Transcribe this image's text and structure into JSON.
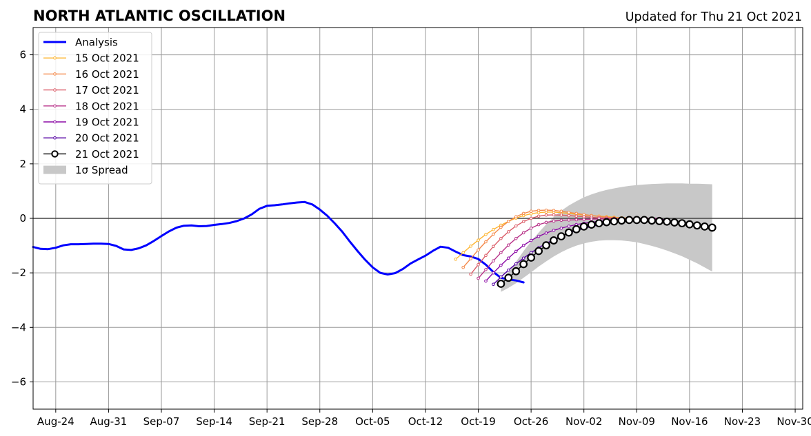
{
  "chart_data": {
    "type": "line",
    "title": "NORTH ATLANTIC OSCILLATION",
    "subtitle": "Updated for Thu 21 Oct 2021",
    "xlabel": "",
    "ylabel": "",
    "x_axis": {
      "type": "date",
      "range": [
        "2021-08-21",
        "2021-12-01"
      ],
      "ticks": [
        "2021-08-24",
        "2021-08-31",
        "2021-09-07",
        "2021-09-14",
        "2021-09-21",
        "2021-09-28",
        "2021-10-05",
        "2021-10-12",
        "2021-10-19",
        "2021-10-26",
        "2021-11-02",
        "2021-11-09",
        "2021-11-16",
        "2021-11-23",
        "2021-11-30"
      ],
      "tick_labels": [
        "Aug-24",
        "Aug-31",
        "Sep-07",
        "Sep-14",
        "Sep-21",
        "Sep-28",
        "Oct-05",
        "Oct-12",
        "Oct-19",
        "Oct-26",
        "Nov-02",
        "Nov-09",
        "Nov-16",
        "Nov-23",
        "Nov-30"
      ]
    },
    "y_axis": {
      "range": [
        -7,
        7
      ],
      "ticks": [
        -6,
        -4,
        -2,
        0,
        2,
        4,
        6
      ],
      "tick_labels": [
        "−6",
        "−4",
        "−2",
        "0",
        "2",
        "4",
        "6"
      ]
    },
    "grid": true,
    "legend_placement": "upper-left",
    "analysis": {
      "name": "Analysis",
      "color": "#0000ff",
      "start": "2021-08-21",
      "values": [
        -1.05,
        -1.12,
        -1.13,
        -1.08,
        -0.99,
        -0.95,
        -0.95,
        -0.94,
        -0.93,
        -0.93,
        -0.94,
        -1.01,
        -1.14,
        -1.16,
        -1.1,
        -0.99,
        -0.83,
        -0.65,
        -0.48,
        -0.34,
        -0.27,
        -0.26,
        -0.29,
        -0.28,
        -0.24,
        -0.21,
        -0.17,
        -0.1,
        0.0,
        0.15,
        0.35,
        0.46,
        0.48,
        0.51,
        0.55,
        0.58,
        0.6,
        0.51,
        0.32,
        0.09,
        -0.19,
        -0.5,
        -0.86,
        -1.2,
        -1.52,
        -1.8,
        -2.0,
        -2.06,
        -2.01,
        -1.86,
        -1.66,
        -1.51,
        -1.37,
        -1.19,
        -1.04,
        -1.08,
        -1.22,
        -1.35,
        -1.4,
        -1.49,
        -1.7,
        -1.97,
        -2.18,
        -2.24,
        -2.28,
        -2.35
      ]
    },
    "forecasts": [
      {
        "name": "15 Oct 2021",
        "color": "#fdb42f",
        "start": "2021-10-16",
        "values": [
          -1.5,
          -1.26,
          -1.02,
          -0.8,
          -0.59,
          -0.41,
          -0.25,
          -0.11,
          0.01,
          0.1,
          0.17,
          0.21,
          0.23,
          0.23,
          0.21,
          0.18,
          0.15,
          0.12,
          0.1,
          0.08,
          0.06,
          0.04,
          0.02,
          0.01,
          0.0
        ]
      },
      {
        "name": "16 Oct 2021",
        "color": "#f48849",
        "start": "2021-10-17",
        "values": [
          -1.8,
          -1.48,
          -1.16,
          -0.86,
          -0.58,
          -0.33,
          -0.11,
          0.06,
          0.18,
          0.26,
          0.29,
          0.3,
          0.29,
          0.26,
          0.22,
          0.18,
          0.14,
          0.1,
          0.07,
          0.04,
          0.02,
          0.01,
          0.0,
          -0.01,
          -0.02
        ]
      },
      {
        "name": "17 Oct 2021",
        "color": "#db5c68",
        "start": "2021-10-18",
        "values": [
          -2.05,
          -1.7,
          -1.36,
          -1.03,
          -0.74,
          -0.49,
          -0.28,
          -0.12,
          0.0,
          0.08,
          0.12,
          0.13,
          0.12,
          0.1,
          0.08,
          0.06,
          0.04,
          0.02,
          0.01,
          0.0,
          -0.01,
          -0.02,
          -0.03,
          -0.04,
          -0.05
        ]
      },
      {
        "name": "18 Oct 2021",
        "color": "#b83289",
        "start": "2021-10-19",
        "values": [
          -2.2,
          -1.88,
          -1.56,
          -1.26,
          -0.98,
          -0.74,
          -0.53,
          -0.36,
          -0.23,
          -0.15,
          -0.1,
          -0.07,
          -0.06,
          -0.05,
          -0.04,
          -0.03,
          -0.02,
          -0.02,
          -0.01,
          -0.01,
          0.0,
          0.0,
          0.0,
          0.0,
          0.0
        ]
      },
      {
        "name": "19 Oct 2021",
        "color": "#8b0aa5",
        "start": "2021-10-20",
        "values": [
          -2.3,
          -2.0,
          -1.72,
          -1.46,
          -1.21,
          -0.99,
          -0.81,
          -0.66,
          -0.54,
          -0.44,
          -0.36,
          -0.29,
          -0.23,
          -0.18,
          -0.14,
          -0.11,
          -0.08,
          -0.06,
          -0.05,
          -0.04,
          -0.03,
          -0.03,
          -0.03,
          -0.04,
          -0.05
        ]
      },
      {
        "name": "20 Oct 2021",
        "color": "#5402a3",
        "start": "2021-10-21",
        "values": [
          -2.42,
          -2.15,
          -1.9,
          -1.67,
          -1.46,
          -1.26,
          -1.08,
          -0.92,
          -0.78,
          -0.65,
          -0.54,
          -0.45,
          -0.37,
          -0.3,
          -0.24,
          -0.19,
          -0.15,
          -0.12,
          -0.1,
          -0.09,
          -0.08,
          -0.08,
          -0.09,
          -0.1,
          -0.11
        ]
      }
    ],
    "current_forecast": {
      "name": "21 Oct 2021",
      "color": "#000000",
      "start": "2021-10-22",
      "values": [
        -2.4,
        -2.18,
        -1.94,
        -1.68,
        -1.44,
        -1.2,
        -0.99,
        -0.81,
        -0.66,
        -0.52,
        -0.4,
        -0.3,
        -0.23,
        -0.18,
        -0.14,
        -0.11,
        -0.08,
        -0.06,
        -0.06,
        -0.06,
        -0.08,
        -0.1,
        -0.12,
        -0.15,
        -0.18,
        -0.22,
        -0.26,
        -0.3,
        -0.34
      ]
    },
    "spread": {
      "name": "1σ Spread",
      "color": "#c8c8c8",
      "start": "2021-10-22",
      "upper": [
        -2.4,
        -2.0,
        -1.6,
        -1.2,
        -0.85,
        -0.52,
        -0.22,
        0.05,
        0.28,
        0.47,
        0.63,
        0.77,
        0.88,
        0.97,
        1.04,
        1.1,
        1.15,
        1.19,
        1.22,
        1.24,
        1.26,
        1.27,
        1.28,
        1.28,
        1.28,
        1.27,
        1.27,
        1.26,
        1.25
      ],
      "lower": [
        -2.7,
        -2.55,
        -2.38,
        -2.18,
        -1.98,
        -1.77,
        -1.58,
        -1.4,
        -1.24,
        -1.11,
        -1.0,
        -0.92,
        -0.86,
        -0.82,
        -0.8,
        -0.8,
        -0.81,
        -0.84,
        -0.88,
        -0.94,
        -1.01,
        -1.09,
        -1.18,
        -1.28,
        -1.39,
        -1.52,
        -1.65,
        -1.8,
        -1.95
      ]
    }
  }
}
